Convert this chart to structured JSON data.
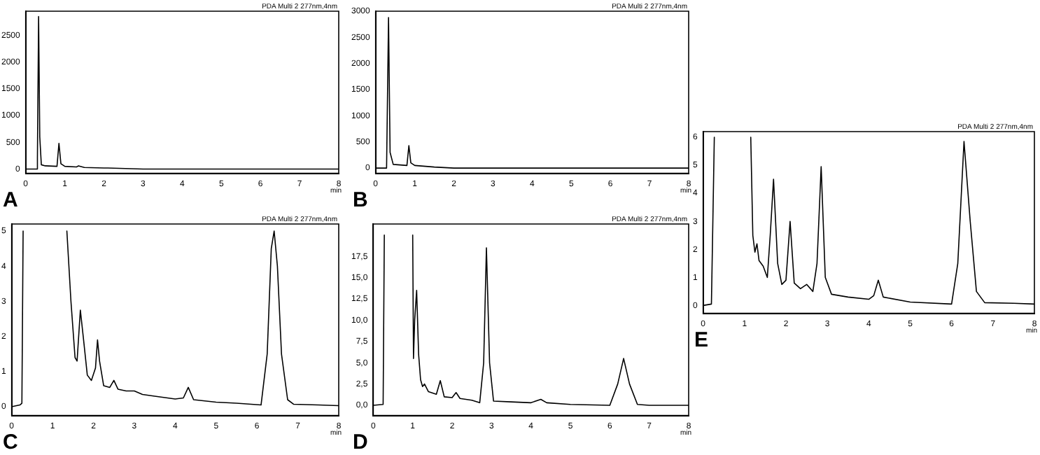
{
  "chart_data": [
    {
      "type": "line",
      "title": "A",
      "xlabel": "min",
      "annotations": [
        "PDA Multi 2 277nm,4nm"
      ],
      "color": "#000000",
      "xlim": [
        0,
        8
      ],
      "xticks": [
        0,
        1,
        2,
        3,
        4,
        5,
        6,
        7,
        8
      ],
      "ylim": [
        -80,
        2950
      ],
      "yticks": [
        0,
        500,
        1000,
        1500,
        2000,
        2500
      ],
      "x": [
        0,
        0.28,
        0.3,
        0.33,
        0.36,
        0.4,
        0.5,
        0.8,
        0.85,
        0.9,
        1.0,
        1.3,
        1.35,
        1.5,
        2.0,
        2.1,
        3,
        8
      ],
      "values": [
        0,
        0,
        200,
        2850,
        600,
        80,
        60,
        50,
        480,
        100,
        50,
        40,
        60,
        30,
        20,
        20,
        0,
        0
      ]
    },
    {
      "type": "line",
      "title": "B",
      "xlabel": "min",
      "annotations": [
        "PDA Multi 2 277nm,4nm"
      ],
      "color": "#000000",
      "xlim": [
        0,
        8
      ],
      "xticks": [
        0,
        1,
        2,
        3,
        4,
        5,
        6,
        7,
        8
      ],
      "ylim": [
        -100,
        3000
      ],
      "yticks": [
        0,
        500,
        1000,
        1500,
        2000,
        2500,
        3000
      ],
      "x": [
        0,
        0.28,
        0.33,
        0.37,
        0.45,
        0.8,
        0.85,
        0.9,
        1.0,
        1.5,
        2,
        8
      ],
      "values": [
        0,
        0,
        2880,
        300,
        70,
        50,
        430,
        100,
        50,
        20,
        0,
        0
      ]
    },
    {
      "type": "line",
      "title": "C",
      "xlabel": "min",
      "annotations": [
        "PDA Multi 2 277nm,4nm"
      ],
      "color": "#000000",
      "xlim": [
        0,
        8
      ],
      "xticks": [
        0,
        1,
        2,
        3,
        4,
        5,
        6,
        7,
        8
      ],
      "ylim": [
        -0.25,
        5.2
      ],
      "yticks": [
        0,
        1,
        2,
        3,
        4,
        5
      ],
      "x": [
        0,
        0.2,
        0.25,
        0.28,
        0.8,
        1.35,
        1.45,
        1.55,
        1.6,
        1.68,
        1.75,
        1.85,
        1.95,
        2.05,
        2.1,
        2.15,
        2.25,
        2.4,
        2.5,
        2.6,
        2.8,
        3.0,
        3.2,
        3.5,
        4.0,
        4.2,
        4.32,
        4.45,
        5,
        5.5,
        6.1,
        6.25,
        6.35,
        6.42,
        6.5,
        6.6,
        6.75,
        6.9,
        7.5,
        8
      ],
      "values": [
        0,
        0.05,
        0.1,
        5.0,
        null,
        5.0,
        3.0,
        1.4,
        1.3,
        2.75,
        2.0,
        0.9,
        0.75,
        1.1,
        1.9,
        1.3,
        0.6,
        0.55,
        0.75,
        0.5,
        0.45,
        0.45,
        0.35,
        0.3,
        0.22,
        0.25,
        0.55,
        0.2,
        0.13,
        0.1,
        0.05,
        1.5,
        4.5,
        5.0,
        4.0,
        1.5,
        0.2,
        0.07,
        0.05,
        0.03
      ]
    },
    {
      "type": "line",
      "title": "D",
      "xlabel": "min",
      "annotations": [
        "PDA Multi 2 277nm,4nm"
      ],
      "color": "#000000",
      "xlim": [
        0,
        8
      ],
      "xticks": [
        0,
        1,
        2,
        3,
        4,
        5,
        6,
        7,
        8
      ],
      "ylim": [
        -1.2,
        21.3
      ],
      "yticks": [
        {
          "value": 0,
          "label": "0,0"
        },
        {
          "value": 2.5,
          "label": "2,5"
        },
        {
          "value": 5,
          "label": "5,0"
        },
        {
          "value": 7.5,
          "label": "7,5"
        },
        {
          "value": 10,
          "label": "10,0"
        },
        {
          "value": 12.5,
          "label": "12,5"
        },
        {
          "value": 15,
          "label": "15,0"
        },
        {
          "value": 17.5,
          "label": "17,5"
        }
      ],
      "x": [
        0,
        0.25,
        0.28,
        0.6,
        1.0,
        1.02,
        1.05,
        1.1,
        1.15,
        1.2,
        1.25,
        1.3,
        1.4,
        1.6,
        1.7,
        1.8,
        2.0,
        2.1,
        2.2,
        2.5,
        2.7,
        2.8,
        2.87,
        2.95,
        3.05,
        3.5,
        4.0,
        4.25,
        4.4,
        5,
        6.0,
        6.2,
        6.35,
        6.5,
        6.7,
        7,
        8
      ],
      "values": [
        0,
        0.1,
        20,
        null,
        20,
        5.5,
        10,
        13.5,
        6,
        3,
        2.2,
        2.5,
        1.6,
        1.3,
        2.9,
        1.0,
        0.9,
        1.5,
        0.8,
        0.6,
        0.3,
        5,
        18.5,
        5,
        0.5,
        0.4,
        0.3,
        0.7,
        0.3,
        0.1,
        0.0,
        2.5,
        5.5,
        2.5,
        0.1,
        0.0,
        0.0
      ]
    },
    {
      "type": "line",
      "title": "E",
      "xlabel": "min",
      "annotations": [
        "PDA Multi 2 277nm,4nm"
      ],
      "color": "#000000",
      "xlim": [
        0,
        8
      ],
      "xticks": [
        0,
        1,
        2,
        3,
        4,
        5,
        6,
        7,
        8
      ],
      "ylim": [
        -0.28,
        6.2
      ],
      "yticks": [
        0,
        1,
        2,
        3,
        4,
        5,
        6
      ],
      "x": [
        0,
        0.2,
        0.27,
        0.7,
        1.15,
        1.2,
        1.25,
        1.3,
        1.35,
        1.45,
        1.55,
        1.62,
        1.7,
        1.8,
        1.9,
        2.0,
        2.1,
        2.2,
        2.35,
        2.5,
        2.65,
        2.75,
        2.85,
        2.95,
        3.1,
        3.5,
        4.0,
        4.12,
        4.23,
        4.35,
        5,
        6.0,
        6.15,
        6.3,
        6.45,
        6.6,
        6.8,
        7.5,
        8
      ],
      "values": [
        0,
        0.05,
        6.0,
        null,
        6.0,
        2.5,
        1.9,
        2.2,
        1.6,
        1.4,
        1.0,
        2.5,
        4.5,
        1.5,
        0.75,
        0.9,
        3.0,
        0.8,
        0.6,
        0.75,
        0.5,
        1.5,
        4.95,
        1.0,
        0.4,
        0.3,
        0.22,
        0.35,
        0.9,
        0.3,
        0.12,
        0.05,
        1.5,
        5.85,
        3.0,
        0.5,
        0.1,
        0.08,
        0.05
      ]
    }
  ]
}
